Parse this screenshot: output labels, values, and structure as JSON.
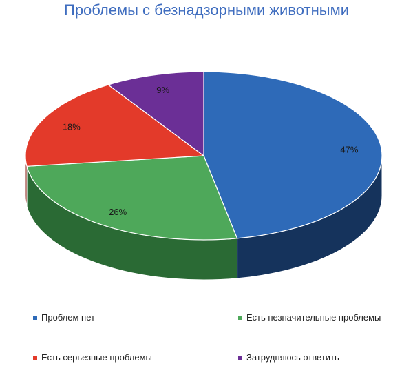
{
  "chart_data": {
    "type": "pie",
    "title": "Проблемы с безнадзорными животными",
    "categories": [
      "Проблем нет",
      "Есть незначительные проблемы",
      "Есть серьезные проблемы",
      "Затрудняюсь ответить"
    ],
    "values": [
      47,
      26,
      18,
      9
    ],
    "labels": [
      "47%",
      "26%",
      "18%",
      "9%"
    ],
    "colors": [
      "#2e6ab8",
      "#4ea85a",
      "#e33a2a",
      "#6b2f96"
    ],
    "side_colors": [
      "#15335c",
      "#2a6a34",
      "#8a1f14",
      "#3a1656"
    ],
    "legend_position": "bottom"
  }
}
